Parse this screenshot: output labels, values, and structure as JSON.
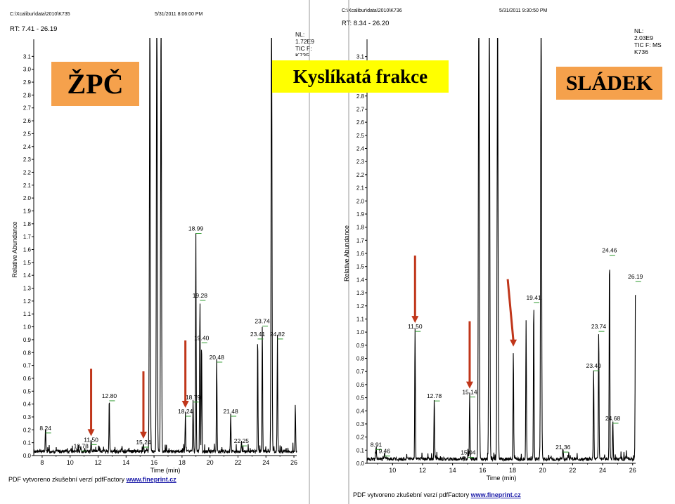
{
  "labels": {
    "left_tag": "ŽPČ",
    "center_tag": "Kyslíkatá frakce",
    "right_tag": "SLÁDEK"
  },
  "colors": {
    "orange_tag": "#f5a14c",
    "yellow_tag": "#ffff00",
    "arrow": "#c0361a",
    "trace": "#000000",
    "label_tick": "#2e9a2e"
  },
  "footer": {
    "text": "PDF vytvoreno zkušební verzí pdfFactory",
    "link": "www.fineprint.cz"
  },
  "chart_data": [
    {
      "type": "line",
      "header_path": "C:\\Xcalibur\\data\\2010\\K735",
      "header_date": "5/31/2011 8:06:00 PM",
      "rt_range": "RT: 7.41 - 26.19",
      "nl_lines": [
        "NL:",
        "1.72E9",
        "TIC F:",
        "K735"
      ],
      "xlabel": "Time (min)",
      "ylabel": "Relative Abundance",
      "xlim": [
        7.4,
        26.2
      ],
      "ylim": [
        0,
        3.2
      ],
      "x_ticks": [
        "8",
        "10",
        "12",
        "14",
        "16",
        "18",
        "20",
        "22",
        "24",
        "26"
      ],
      "y_ticks": [
        "0.0",
        "0.1",
        "0.2",
        "0.3",
        "0.4",
        "0.5",
        "0.6",
        "0.7",
        "0.8",
        "0.9",
        "1.0",
        "1.1",
        "1.2",
        "1.3",
        "1.4",
        "1.5",
        "1.6",
        "1.7",
        "1.8",
        "1.9",
        "2.0",
        "2.1",
        "2.2",
        "2.3",
        "2.4",
        "2.5",
        "2.6",
        "2.7",
        "2.8",
        "2.9",
        "3.0",
        "3.1"
      ],
      "peaks": [
        {
          "x": 8.24,
          "y": 0.17,
          "label": "8.24"
        },
        {
          "x": 10.78,
          "y": 0.03,
          "label": "10.78"
        },
        {
          "x": 11.5,
          "y": 0.08,
          "label": "11.50"
        },
        {
          "x": 12.8,
          "y": 0.42,
          "label": "12.80"
        },
        {
          "x": 15.24,
          "y": 0.06,
          "label": "15.24"
        },
        {
          "x": 15.7,
          "y": 3.4,
          "label": ""
        },
        {
          "x": 16.2,
          "y": 3.4,
          "label": ""
        },
        {
          "x": 16.5,
          "y": 3.4,
          "label": ""
        },
        {
          "x": 18.24,
          "y": 0.3,
          "label": "18.24"
        },
        {
          "x": 18.79,
          "y": 0.41,
          "label": "18.79"
        },
        {
          "x": 18.99,
          "y": 1.72,
          "label": "18.99"
        },
        {
          "x": 19.28,
          "y": 1.2,
          "label": "19.28"
        },
        {
          "x": 19.4,
          "y": 0.87,
          "label": "19.40"
        },
        {
          "x": 20.48,
          "y": 0.72,
          "label": "20.48"
        },
        {
          "x": 21.48,
          "y": 0.3,
          "label": "21.48"
        },
        {
          "x": 22.25,
          "y": 0.07,
          "label": "22.25"
        },
        {
          "x": 23.41,
          "y": 0.9,
          "label": "23.41"
        },
        {
          "x": 23.74,
          "y": 1.0,
          "label": "23.74"
        },
        {
          "x": 24.4,
          "y": 3.4,
          "label": ""
        },
        {
          "x": 24.82,
          "y": 0.9,
          "label": "24.82"
        },
        {
          "x": 26.1,
          "y": 0.36,
          "label": ""
        }
      ],
      "arrows_at": [
        11.5,
        15.24,
        18.24
      ]
    },
    {
      "type": "line",
      "header_path": "C:\\Xcalibur\\data\\2010\\K736",
      "header_date": "5/31/2011 9:30:50 PM",
      "rt_range": "RT: 8.34 - 26.20",
      "nl_lines": [
        "NL:",
        "2.03E9",
        "TIC F:  MS",
        "K736"
      ],
      "xlabel": "Time (min)",
      "ylabel": "Relative Abundance",
      "xlim": [
        8.3,
        26.2
      ],
      "ylim": [
        0,
        3.2
      ],
      "x_ticks": [
        "10",
        "12",
        "14",
        "16",
        "18",
        "20",
        "22",
        "24",
        "26"
      ],
      "y_ticks": [
        "0.0",
        "0.1",
        "0.2",
        "0.3",
        "0.4",
        "0.5",
        "0.6",
        "0.7",
        "0.8",
        "0.9",
        "1.0",
        "1.1",
        "1.2",
        "1.3",
        "1.4",
        "1.5",
        "1.6",
        "1.7",
        "1.8",
        "1.9",
        "2.0",
        "2.1",
        "2.2",
        "2.3",
        "2.4",
        "2.5",
        "2.6",
        "2.7",
        "2.8",
        "2.9",
        "3.0",
        "3.1"
      ],
      "peaks": [
        {
          "x": 8.91,
          "y": 0.1,
          "label": "8.91"
        },
        {
          "x": 9.46,
          "y": 0.05,
          "label": "9.46"
        },
        {
          "x": 11.5,
          "y": 1.0,
          "label": "11.50"
        },
        {
          "x": 12.78,
          "y": 0.47,
          "label": "12.78"
        },
        {
          "x": 15.04,
          "y": 0.04,
          "label": "15.04"
        },
        {
          "x": 15.14,
          "y": 0.5,
          "label": "15.14"
        },
        {
          "x": 15.75,
          "y": 3.4,
          "label": ""
        },
        {
          "x": 16.45,
          "y": 3.4,
          "label": ""
        },
        {
          "x": 17.0,
          "y": 3.4,
          "label": ""
        },
        {
          "x": 18.05,
          "y": 0.82,
          "label": ""
        },
        {
          "x": 18.9,
          "y": 1.05,
          "label": ""
        },
        {
          "x": 19.41,
          "y": 1.22,
          "label": "19.41"
        },
        {
          "x": 19.9,
          "y": 3.4,
          "label": ""
        },
        {
          "x": 21.36,
          "y": 0.08,
          "label": "21.36"
        },
        {
          "x": 23.4,
          "y": 0.7,
          "label": "23.40"
        },
        {
          "x": 23.74,
          "y": 1.0,
          "label": "23.74"
        },
        {
          "x": 24.46,
          "y": 1.58,
          "label": "24.46"
        },
        {
          "x": 24.68,
          "y": 0.3,
          "label": "24.68"
        },
        {
          "x": 26.19,
          "y": 1.38,
          "label": "26.19"
        }
      ],
      "arrows_at": [
        11.5,
        15.14,
        18.05
      ]
    }
  ]
}
